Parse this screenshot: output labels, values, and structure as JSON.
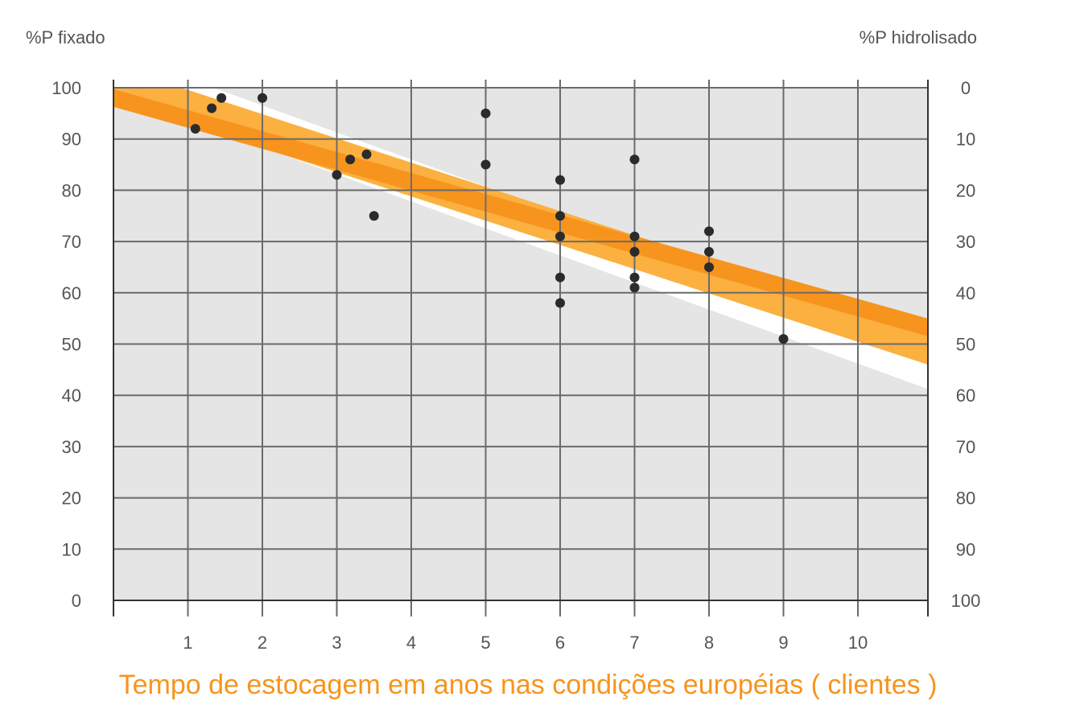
{
  "chart_data": {
    "type": "scatter",
    "title": "",
    "xlabel": "Tempo de estocagem em anos nas condições européias ( clientes )",
    "ylabel_left": "%P fixado",
    "ylabel_right": "%P hidrolisado",
    "x_ticks": [
      "1",
      "2",
      "3",
      "4",
      "5",
      "6",
      "7",
      "8",
      "9",
      "10"
    ],
    "y_ticks_left": [
      "0",
      "10",
      "20",
      "30",
      "40",
      "50",
      "60",
      "70",
      "80",
      "90",
      "100"
    ],
    "y_ticks_right": [
      "100",
      "90",
      "80",
      "70",
      "60",
      "50",
      "40",
      "30",
      "20",
      "10",
      "0"
    ],
    "xlim": [
      0,
      11
    ],
    "ylim": [
      0,
      100
    ],
    "grid": true,
    "colors": {
      "plot_bg": "#e5e5e5",
      "grid": "#6b6b6b",
      "band_outer": "#ffffff",
      "band_middle": "#fbb040",
      "band_inner": "#f7941d",
      "points": "#2b2b2b",
      "xlabel": "#f7941d"
    },
    "bands": [
      {
        "name": "outer",
        "start": [
          0,
          103
        ],
        "end": [
          11,
          45
        ]
      },
      {
        "name": "middle",
        "start": [
          0,
          101
        ],
        "end": [
          11,
          49
        ]
      },
      {
        "name": "inner",
        "start": [
          0,
          98
        ],
        "end": [
          11,
          53
        ]
      }
    ],
    "series": [
      {
        "x": [
          1.1,
          1.32,
          1.45,
          2.0,
          3.0,
          3.18,
          3.4,
          3.5,
          5.0,
          5.0,
          6.0,
          6.0,
          6.0,
          6.0,
          6.0,
          7.0,
          7.0,
          7.0,
          7.0,
          7.0,
          8.0,
          8.0,
          8.0,
          9.0
        ],
        "y": [
          92,
          96,
          98,
          98,
          83,
          86,
          87,
          75,
          95,
          85,
          82,
          75,
          71,
          63,
          58,
          86,
          71,
          68,
          63,
          61,
          72,
          68,
          65,
          51
        ]
      }
    ]
  }
}
